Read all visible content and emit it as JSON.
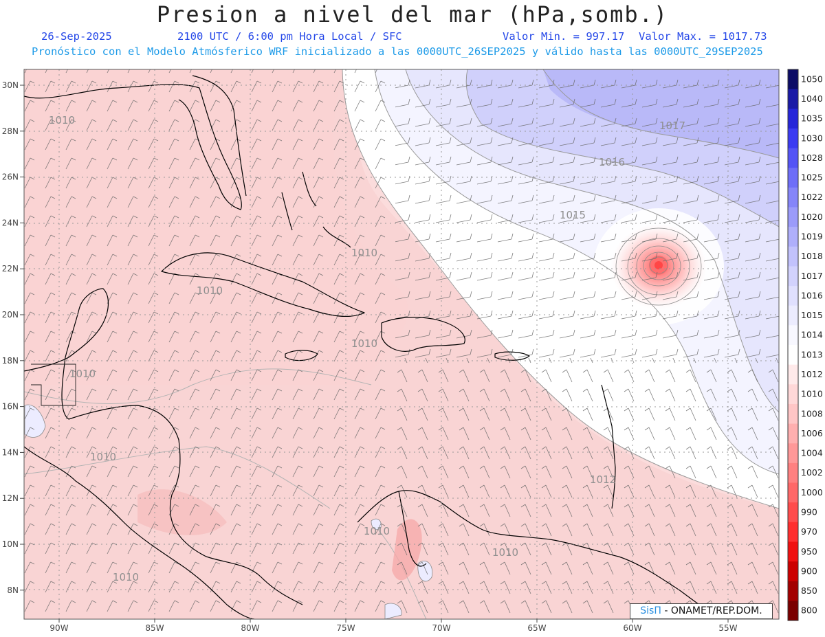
{
  "header": {
    "title": "Presion a nivel del mar (hPa,somb.)",
    "date": "26-Sep-2025",
    "time": "2100 UTC / 6:00 pm Hora Local / SFC",
    "min_label": "Valor Min. = 997.17",
    "max_label": "Valor Max. = 1017.73",
    "subtitle": "Pronóstico con el Modelo Atmósferico WRF inicializado a las 0000UTC_26SEP2025 y válido hasta las  0000UTC_29SEP2025"
  },
  "axes": {
    "lat_labels": [
      "30N",
      "28N",
      "26N",
      "24N",
      "22N",
      "20N",
      "18N",
      "16N",
      "14N",
      "12N",
      "10N",
      "8N"
    ],
    "lon_labels": [
      "90W",
      "85W",
      "80W",
      "75W",
      "70W",
      "65W",
      "60W",
      "55W"
    ]
  },
  "contour_labels": [
    "1010",
    "1010",
    "1010",
    "1010",
    "1010",
    "1010",
    "1010",
    "1010",
    "1010",
    "1012",
    "1015",
    "1016",
    "1017"
  ],
  "colorbar": {
    "labels": [
      "1050",
      "1040",
      "1035",
      "1030",
      "1028",
      "1025",
      "1022",
      "1020",
      "1019",
      "1018",
      "1017",
      "1016",
      "1015",
      "1014",
      "1013",
      "1012",
      "1010",
      "1008",
      "1006",
      "1004",
      "1002",
      "1000",
      "990",
      "970",
      "950",
      "900",
      "850",
      "800"
    ],
    "colors": [
      "#0c0c66",
      "#1a1aa6",
      "#2626d9",
      "#3b3bf2",
      "#5454f6",
      "#6e6ef8",
      "#8585f9",
      "#9b9bfa",
      "#afaffb",
      "#c2c2fc",
      "#d2d2fd",
      "#e0e0fe",
      "#ececfe",
      "#f8f8ff",
      "#ffffff",
      "#ffeaea",
      "#ffd8d8",
      "#ffc6c6",
      "#ffafaf",
      "#ff9898",
      "#ff8080",
      "#ff6868",
      "#ff4c4c",
      "#ff2e2e",
      "#f01010",
      "#cc0000",
      "#a30000",
      "#7a0000"
    ]
  },
  "credit": {
    "brand": "SisΠ",
    "text": "- ONAMET/REP.DOM."
  }
}
